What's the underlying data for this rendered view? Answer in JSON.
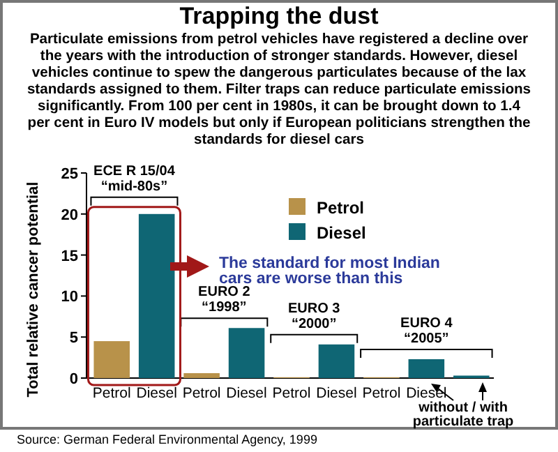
{
  "chart_data": {
    "type": "bar",
    "title": "Trapping the dust",
    "subtitle": "Particulate emissions from petrol vehicles have registered a decline over the years with the introduction of stronger standards. However, diesel vehicles continue to spew the dangerous particulates because of the lax standards assigned to them. Filter traps can reduce particulate emissions significantly. From 100 per cent in 1980s, it can be brought down to 1.4 per cent in Euro IV models but only if European politicians strengthen the standards for diesel cars",
    "ylabel": "Total relative cancer potential",
    "categories": [
      "Petrol",
      "Diesel",
      "Petrol",
      "Diesel",
      "Petrol",
      "Diesel",
      "Petrol",
      "Diesel",
      null
    ],
    "series": [
      {
        "name": "Petrol",
        "color": "#b8924a",
        "values": [
          4.5,
          null,
          0.6,
          null,
          0.1,
          null,
          0.1,
          null,
          null
        ]
      },
      {
        "name": "Diesel",
        "color": "#0f6674",
        "values": [
          null,
          20,
          null,
          6.1,
          null,
          4.1,
          null,
          2.3,
          0.3
        ]
      }
    ],
    "ylim": [
      0,
      25
    ],
    "yticks": [
      0,
      5,
      10,
      15,
      20,
      25
    ],
    "grid": false,
    "legend": "top right",
    "annotations": [
      "ECE R 15/04\n“mid-80s”",
      "EURO 2\n“1998”",
      "EURO 3\n“2000”",
      "EURO 4\n“2005”",
      "The standard for most Indian\ncars are worse than this",
      "without / with\nparticulate trap",
      "Source: German Federal Environmental Agency, 1999"
    ]
  }
}
